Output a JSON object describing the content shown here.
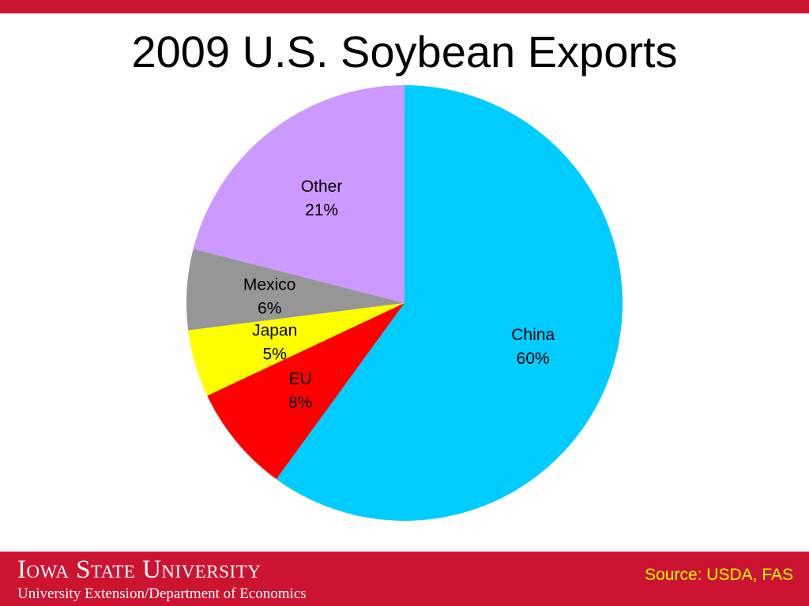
{
  "header": {
    "title": "2009 U.S. Soybean Exports"
  },
  "chart_data": {
    "type": "pie",
    "title": "2009 U.S. Soybean Exports",
    "start_angle_deg": 0,
    "direction": "clockwise",
    "slices": [
      {
        "label": "China",
        "value": 60,
        "value_label": "60%",
        "color": "#00CCFF"
      },
      {
        "label": "EU",
        "value": 8,
        "value_label": "8%",
        "color": "#FF0000"
      },
      {
        "label": "Japan",
        "value": 5,
        "value_label": "5%",
        "color": "#FFFF00"
      },
      {
        "label": "Mexico",
        "value": 6,
        "value_label": "6%",
        "color": "#969696"
      },
      {
        "label": "Other",
        "value": 21,
        "value_label": "21%",
        "color": "#CC99FF"
      }
    ]
  },
  "footer": {
    "university": "Iowa State University",
    "department": "University Extension/Department of Economics",
    "source": "Source: USDA, FAS"
  },
  "colors": {
    "brand_red": "#CC1432",
    "source_text": "#FFFF00",
    "background": "#FFFFFF"
  }
}
